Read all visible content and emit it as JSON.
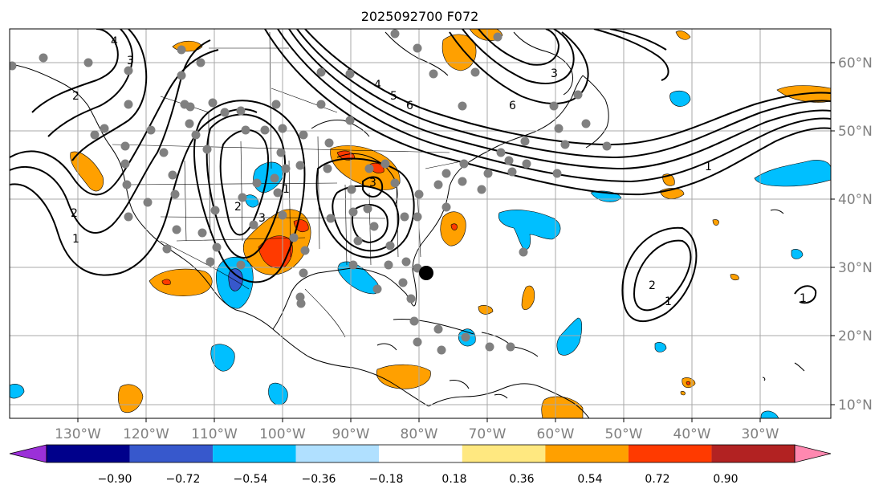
{
  "title": "2025092700 F072",
  "lon_labels": [
    "130°W",
    "120°W",
    "110°W",
    "100°W",
    "90°W",
    "80°W",
    "70°W",
    "60°W",
    "50°W",
    "40°W",
    "30°W"
  ],
  "lat_labels": [
    "60°N",
    "50°N",
    "40°N",
    "30°N",
    "20°N",
    "10°N"
  ],
  "contour_labels": [
    "4",
    "3",
    "2",
    "1",
    "2",
    "3",
    "3",
    "1",
    "2",
    "3",
    "4",
    "5",
    "6",
    "3",
    "6",
    "1",
    "2",
    "1",
    "1"
  ],
  "colorbar": {
    "tick_labels": [
      "−0.90",
      "−0.72",
      "−0.54",
      "−0.36",
      "−0.18",
      "0.18",
      "0.36",
      "0.54",
      "0.72",
      "0.90"
    ],
    "colors": [
      "#9b30d8",
      "#00008b",
      "#3758cc",
      "#00bfff",
      "#b0e0ff",
      "#ffffff",
      "#ffe880",
      "#ffa000",
      "#ff3a00",
      "#b22222",
      "#ff88b0"
    ]
  },
  "colors": {
    "grid": "#a9a9a9",
    "coast": "#000000",
    "station_dot": "#808080",
    "marker": "#000000"
  }
}
